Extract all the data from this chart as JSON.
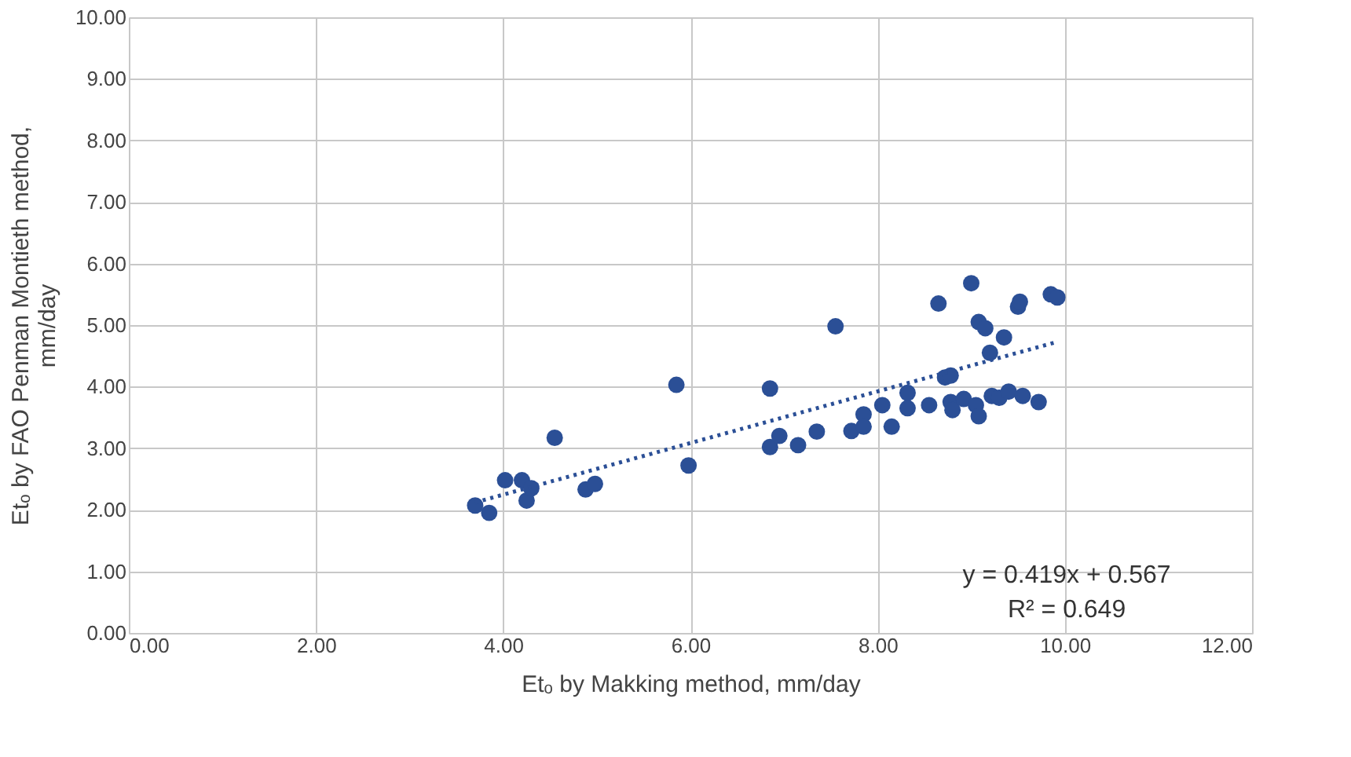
{
  "chart_data": {
    "type": "scatter",
    "xlabel": "Etₒ by Makking method,  mm/day",
    "ylabel": "Etₒ by FAO Penman Montieth method,\nmm/day",
    "series": [
      {
        "color": "#2b4f96",
        "marker": "circle",
        "x": [
          3.7,
          3.85,
          4.02,
          4.2,
          4.25,
          4.3,
          4.55,
          4.88,
          4.98,
          5.85,
          5.98,
          6.85,
          6.85,
          6.95,
          7.15,
          7.35,
          7.55,
          7.72,
          7.85,
          7.85,
          8.05,
          8.15,
          8.32,
          8.32,
          8.55,
          8.65,
          8.72,
          8.78,
          8.78,
          8.8,
          8.92,
          9.0,
          9.05,
          9.08,
          9.08,
          9.15,
          9.2,
          9.22,
          9.3,
          9.35,
          9.4,
          9.5,
          9.52,
          9.55,
          9.72,
          9.85,
          9.92
        ],
        "values": [
          2.07,
          1.95,
          2.48,
          2.48,
          2.15,
          2.35,
          3.17,
          2.33,
          2.42,
          4.03,
          2.72,
          3.97,
          3.02,
          3.2,
          3.05,
          3.27,
          4.98,
          3.28,
          3.55,
          3.35,
          3.7,
          3.35,
          3.9,
          3.65,
          3.7,
          5.35,
          4.15,
          4.18,
          3.75,
          3.62,
          3.8,
          5.68,
          3.7,
          3.52,
          5.05,
          4.95,
          4.55,
          3.85,
          3.82,
          4.8,
          3.92,
          5.3,
          5.38,
          3.85,
          3.75,
          5.5,
          5.45
        ]
      },
      {
        "type": "line",
        "color": "#2b4f96",
        "line_style": "dotted",
        "x": [
          3.7,
          9.9
        ],
        "values": [
          2.12,
          4.72
        ]
      }
    ],
    "annotations": [
      "y = 0.419x + 0.567",
      "R² = 0.649"
    ],
    "xlim": [
      0,
      12
    ],
    "xticks": [
      {
        "value": 0,
        "label": "0.00"
      },
      {
        "value": 2,
        "label": "2.00"
      },
      {
        "value": 4,
        "label": "4.00"
      },
      {
        "value": 6,
        "label": "6.00"
      },
      {
        "value": 8,
        "label": "8.00"
      },
      {
        "value": 10,
        "label": "10.00"
      },
      {
        "value": 12,
        "label": "12.00"
      }
    ],
    "ylim": [
      0,
      10
    ],
    "yticks": [
      {
        "value": 0,
        "label": "0.00"
      },
      {
        "value": 1,
        "label": "1.00"
      },
      {
        "value": 2,
        "label": "2.00"
      },
      {
        "value": 3,
        "label": "3.00"
      },
      {
        "value": 4,
        "label": "4.00"
      },
      {
        "value": 5,
        "label": "5.00"
      },
      {
        "value": 6,
        "label": "6.00"
      },
      {
        "value": 7,
        "label": "7.00"
      },
      {
        "value": 8,
        "label": "8.00"
      },
      {
        "value": 9,
        "label": "9.00"
      },
      {
        "value": 10,
        "label": "10.00"
      }
    ],
    "grid": true
  }
}
